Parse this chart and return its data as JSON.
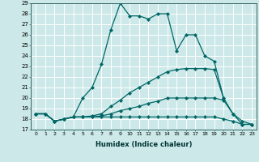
{
  "xlabel": "Humidex (Indice chaleur)",
  "ylabel": "",
  "background_color": "#cce8e8",
  "grid_color": "#ffffff",
  "line_color": "#006666",
  "xlim": [
    -0.5,
    23.5
  ],
  "ylim": [
    17,
    29
  ],
  "xticks": [
    0,
    1,
    2,
    3,
    4,
    5,
    6,
    7,
    8,
    9,
    10,
    11,
    12,
    13,
    14,
    15,
    16,
    17,
    18,
    19,
    20,
    21,
    22,
    23
  ],
  "yticks": [
    17,
    18,
    19,
    20,
    21,
    22,
    23,
    24,
    25,
    26,
    27,
    28,
    29
  ],
  "series": [
    {
      "x": [
        0,
        1,
        2,
        3,
        4,
        5,
        6,
        7,
        8,
        9,
        10,
        11,
        12,
        13,
        14,
        15,
        16,
        17,
        18,
        19,
        20
      ],
      "y": [
        18.5,
        18.5,
        17.8,
        18.0,
        18.2,
        20.0,
        21.0,
        23.2,
        26.5,
        29.0,
        27.8,
        27.8,
        27.5,
        28.0,
        28.0,
        24.5,
        26.0,
        26.0,
        24.0,
        23.5,
        20.0
      ]
    },
    {
      "x": [
        0,
        1,
        2,
        3,
        4,
        5,
        6,
        7,
        8,
        9,
        10,
        11,
        12,
        13,
        14,
        15,
        16,
        17,
        18,
        19,
        20,
        21,
        22,
        23
      ],
      "y": [
        18.5,
        18.5,
        17.8,
        18.0,
        18.2,
        18.2,
        18.3,
        18.5,
        19.2,
        19.8,
        20.5,
        21.0,
        21.5,
        22.0,
        22.5,
        22.7,
        22.8,
        22.8,
        22.8,
        22.7,
        20.0,
        18.5,
        17.5,
        17.5
      ]
    },
    {
      "x": [
        0,
        1,
        2,
        3,
        4,
        5,
        6,
        7,
        8,
        9,
        10,
        11,
        12,
        13,
        14,
        15,
        16,
        17,
        18,
        19,
        20,
        21,
        22,
        23
      ],
      "y": [
        18.5,
        18.5,
        17.8,
        18.0,
        18.2,
        18.2,
        18.2,
        18.3,
        18.5,
        18.8,
        19.0,
        19.2,
        19.5,
        19.7,
        20.0,
        20.0,
        20.0,
        20.0,
        20.0,
        20.0,
        19.8,
        18.5,
        17.8,
        17.5
      ]
    },
    {
      "x": [
        0,
        1,
        2,
        3,
        4,
        5,
        6,
        7,
        8,
        9,
        10,
        11,
        12,
        13,
        14,
        15,
        16,
        17,
        18,
        19,
        20,
        21,
        22,
        23
      ],
      "y": [
        18.5,
        18.5,
        17.8,
        18.0,
        18.2,
        18.2,
        18.2,
        18.2,
        18.2,
        18.2,
        18.2,
        18.2,
        18.2,
        18.2,
        18.2,
        18.2,
        18.2,
        18.2,
        18.2,
        18.2,
        18.0,
        17.8,
        17.5,
        17.5
      ]
    }
  ]
}
